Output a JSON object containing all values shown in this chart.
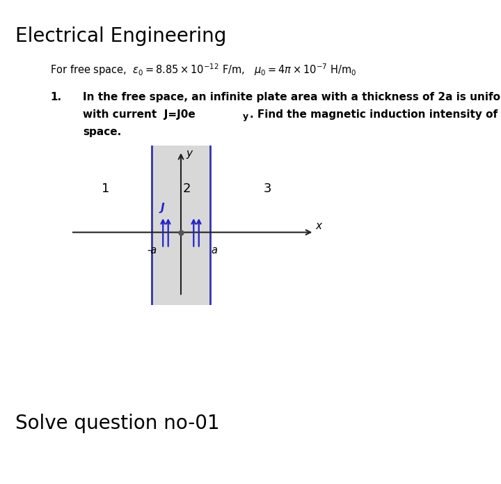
{
  "title": "Electrical Engineering",
  "free_space_text": "For free space,  ",
  "free_space_math": "$\\varepsilon_0 = 8.85\\times10^{-12}$ F/m,   $\\mu_0 = 4\\pi\\times10^{-7}$ H/m$_0$",
  "problem_number": "1.",
  "problem_line1": "In the free space, an infinite plate area with a thickness of 2a is uniformly distributed",
  "problem_line2": "with current  J=J0e",
  "problem_line2b": "y",
  "problem_line2c": ". Find the magnetic induction intensity of each point in the",
  "problem_line3": "space.",
  "solve_text": "Solve question no-01",
  "background_color": "#ffffff",
  "plate_fill_color": "#d8d8d8",
  "plate_border_color": "#3333aa",
  "arrow_color": "#2222cc",
  "axis_color": "#222222",
  "label_1": "1",
  "label_2": "2",
  "label_3": "3",
  "label_minus_a": "-a",
  "label_a": "a",
  "label_J": "J",
  "label_x": "x",
  "label_y": "y"
}
